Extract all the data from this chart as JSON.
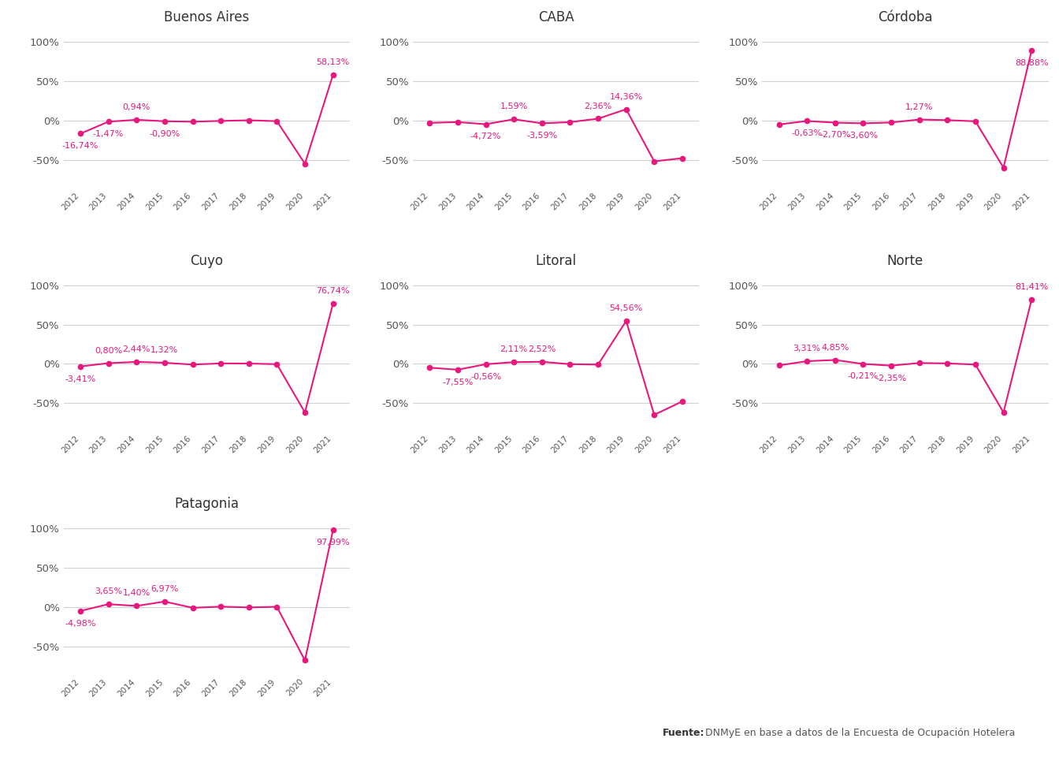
{
  "regions": [
    {
      "name": "Buenos Aires",
      "values": [
        -16.74,
        -1.47,
        0.94,
        -0.9,
        -1.5,
        -0.5,
        0.3,
        -0.8,
        -55.0,
        58.13
      ],
      "labels": [
        "-16,74%",
        "-1,47%",
        "0,94%",
        "-0,90%",
        "",
        "",
        "",
        "",
        "",
        "58,13%"
      ],
      "show": [
        true,
        true,
        true,
        true,
        false,
        false,
        false,
        false,
        false,
        true
      ]
    },
    {
      "name": "CABA",
      "values": [
        -3.0,
        -2.0,
        -4.72,
        1.59,
        -3.59,
        -2.0,
        2.36,
        14.36,
        -52.0,
        -48.0
      ],
      "labels": [
        "",
        "",
        "-4,72%",
        "1,59%",
        "-3,59%",
        "",
        "2,36%",
        "14,36%",
        "",
        ""
      ],
      "show": [
        false,
        false,
        true,
        true,
        true,
        false,
        true,
        true,
        false,
        false
      ]
    },
    {
      "name": "Córdoba",
      "values": [
        -5.0,
        -0.63,
        -2.7,
        -3.6,
        -2.5,
        1.27,
        0.5,
        -1.0,
        -60.0,
        88.88
      ],
      "labels": [
        "",
        "-0,63%",
        "-2,70%",
        "-3,60%",
        "",
        "1,27%",
        "",
        "",
        "",
        "88,88%"
      ],
      "show": [
        false,
        true,
        true,
        true,
        false,
        true,
        false,
        false,
        false,
        true
      ]
    },
    {
      "name": "Cuyo",
      "values": [
        -3.41,
        0.8,
        2.44,
        1.32,
        -1.0,
        0.5,
        0.3,
        -0.5,
        -62.0,
        76.74
      ],
      "labels": [
        "-3,41%",
        "0,80%",
        "2,44%",
        "1,32%",
        "",
        "",
        "",
        "",
        "",
        "76,74%"
      ],
      "show": [
        true,
        true,
        true,
        true,
        false,
        false,
        false,
        false,
        false,
        true
      ]
    },
    {
      "name": "Litoral",
      "values": [
        -5.0,
        -7.55,
        -0.56,
        2.11,
        2.52,
        -0.5,
        -1.0,
        54.56,
        -65.0,
        -48.0
      ],
      "labels": [
        "",
        "-7,55%",
        "-0,56%",
        "2,11%",
        "2,52%",
        "",
        "",
        "54,56%",
        "",
        ""
      ],
      "show": [
        false,
        true,
        true,
        true,
        true,
        false,
        false,
        true,
        false,
        false
      ]
    },
    {
      "name": "Norte",
      "values": [
        -2.0,
        3.31,
        4.85,
        -0.21,
        -2.35,
        1.0,
        0.5,
        -1.0,
        -62.0,
        81.41
      ],
      "labels": [
        "",
        "3,31%",
        "4,85%",
        "-0,21%",
        "-2,35%",
        "",
        "",
        "",
        "",
        "81,41%"
      ],
      "show": [
        false,
        true,
        true,
        true,
        true,
        false,
        false,
        false,
        false,
        true
      ]
    },
    {
      "name": "Patagonia",
      "values": [
        -4.98,
        3.65,
        1.4,
        6.97,
        -1.0,
        0.5,
        -0.5,
        0.3,
        -68.0,
        97.99
      ],
      "labels": [
        "-4,98%",
        "3,65%",
        "1,40%",
        "6,97%",
        "",
        "",
        "",
        "",
        "",
        "97,99%"
      ],
      "show": [
        true,
        true,
        true,
        true,
        false,
        false,
        false,
        false,
        false,
        true
      ]
    }
  ],
  "years": [
    2012,
    2013,
    2014,
    2015,
    2016,
    2017,
    2018,
    2019,
    2020,
    2021
  ],
  "line_color": "#e8177d",
  "title_color": "#333333",
  "axis_color": "#555555",
  "grid_color": "#cccccc",
  "background_color": "#ffffff",
  "yticks": [
    -50,
    0,
    50,
    100
  ],
  "ylim": [
    -85,
    115
  ],
  "source_bold": "Fuente:",
  "source_normal": " DNMyE en base a datos de la Encuesta de Ocupación Hotelera"
}
